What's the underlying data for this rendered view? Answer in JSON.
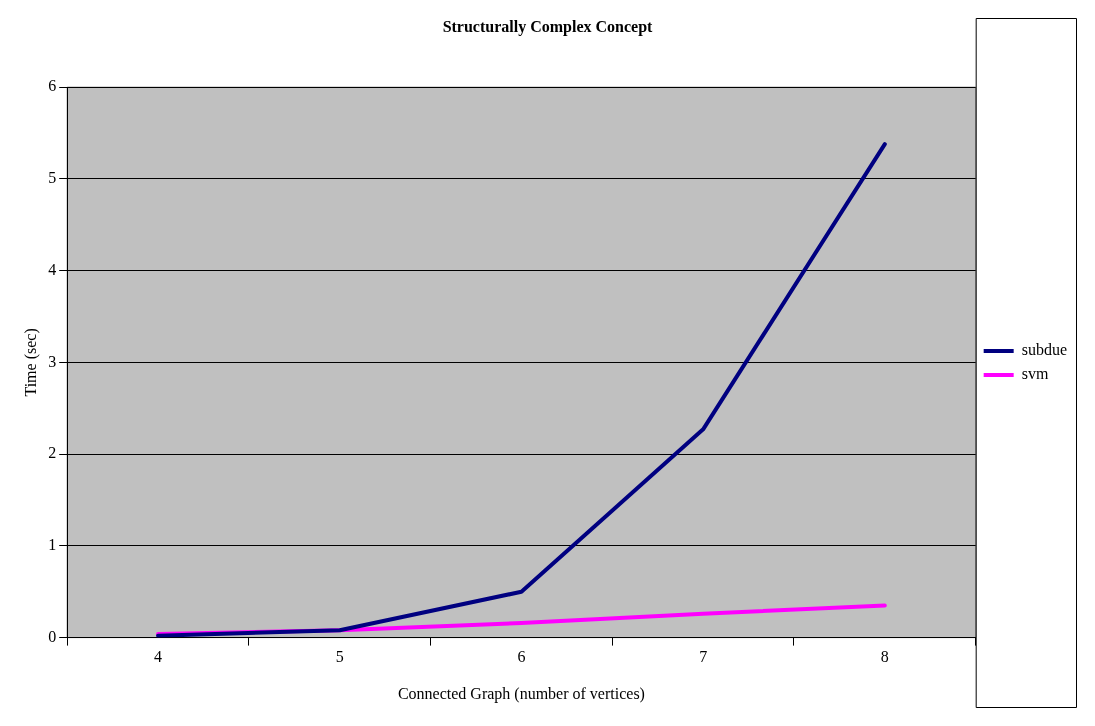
{
  "chart_data": {
    "type": "line",
    "title": "Structurally Complex Concept",
    "xlabel": "Connected Graph (number of vertices)",
    "ylabel": "Time (sec)",
    "categories": [
      "4",
      "5",
      "6",
      "7",
      "8"
    ],
    "series": [
      {
        "name": "subdue",
        "color": "#000080",
        "values": [
          0.02,
          0.08,
          0.5,
          2.27,
          5.38
        ]
      },
      {
        "name": "svm",
        "color": "#ff00ff",
        "values": [
          0.04,
          0.08,
          0.16,
          0.26,
          0.35
        ]
      }
    ],
    "ylim": [
      0,
      6
    ],
    "yticks": [
      0,
      1,
      2,
      3,
      4,
      5,
      6
    ],
    "grid": "y",
    "legend": "right",
    "marker": "none",
    "line_style": "solid"
  }
}
